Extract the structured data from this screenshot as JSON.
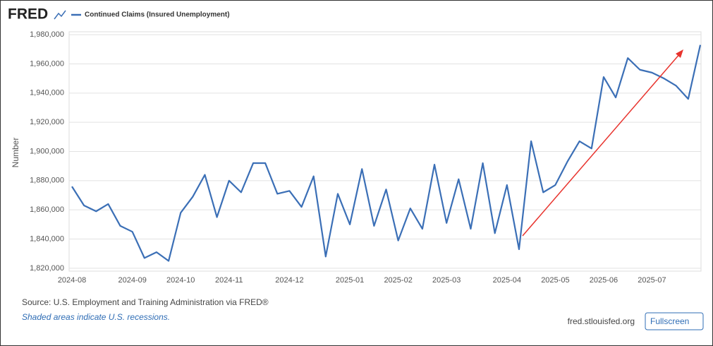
{
  "logo": "FRED",
  "chart_data": {
    "type": "line",
    "y_label": "Number",
    "categories": [
      "2024-08",
      null,
      null,
      null,
      null,
      "2024-09",
      null,
      null,
      null,
      "2024-10",
      null,
      null,
      null,
      "2024-11",
      null,
      null,
      null,
      null,
      "2024-12",
      null,
      null,
      null,
      null,
      "2025-01",
      null,
      null,
      null,
      "2025-02",
      null,
      null,
      null,
      "2025-03",
      null,
      null,
      null,
      null,
      "2025-04",
      null,
      null,
      null,
      "2025-05",
      null,
      null,
      null,
      "2025-06",
      null,
      null,
      null,
      "2025-07",
      null,
      null,
      null,
      null
    ],
    "series": [
      {
        "name": "Continued Claims (Insured Unemployment)",
        "color": "#3b6fb6",
        "values": [
          1876000,
          1863000,
          1859000,
          1864000,
          1849000,
          1845000,
          1827000,
          1831000,
          1825000,
          1858000,
          1869000,
          1884000,
          1855000,
          1880000,
          1872000,
          1892000,
          1892000,
          1871000,
          1873000,
          1862000,
          1883000,
          1828000,
          1871000,
          1850000,
          1888000,
          1849000,
          1874000,
          1839000,
          1861000,
          1847000,
          1891000,
          1851000,
          1881000,
          1847000,
          1892000,
          1844000,
          1877000,
          1833000,
          1907000,
          1872000,
          1877000,
          1893000,
          1907000,
          1902000,
          1951000,
          1937000,
          1964000,
          1956000,
          1954000,
          1950000,
          1945000,
          1936000,
          1973000
        ]
      }
    ],
    "ylim": [
      1818000,
      1982000
    ],
    "yticks": [
      {
        "value": 1820000,
        "label": "1,820,000"
      },
      {
        "value": 1840000,
        "label": "1,840,000"
      },
      {
        "value": 1860000,
        "label": "1,860,000"
      },
      {
        "value": 1880000,
        "label": "1,880,000"
      },
      {
        "value": 1900000,
        "label": "1,900,000"
      },
      {
        "value": 1920000,
        "label": "1,920,000"
      },
      {
        "value": 1940000,
        "label": "1,940,000"
      },
      {
        "value": 1960000,
        "label": "1,960,000"
      },
      {
        "value": 1980000,
        "label": "1,980,000"
      }
    ],
    "grid": true
  },
  "footer": {
    "source": "Source: U.S. Employment and Training Administration via FRED®",
    "note": "Shaded areas indicate U.S. recessions.",
    "site": "fred.stlouisfed.org",
    "button": "Fullscreen"
  }
}
